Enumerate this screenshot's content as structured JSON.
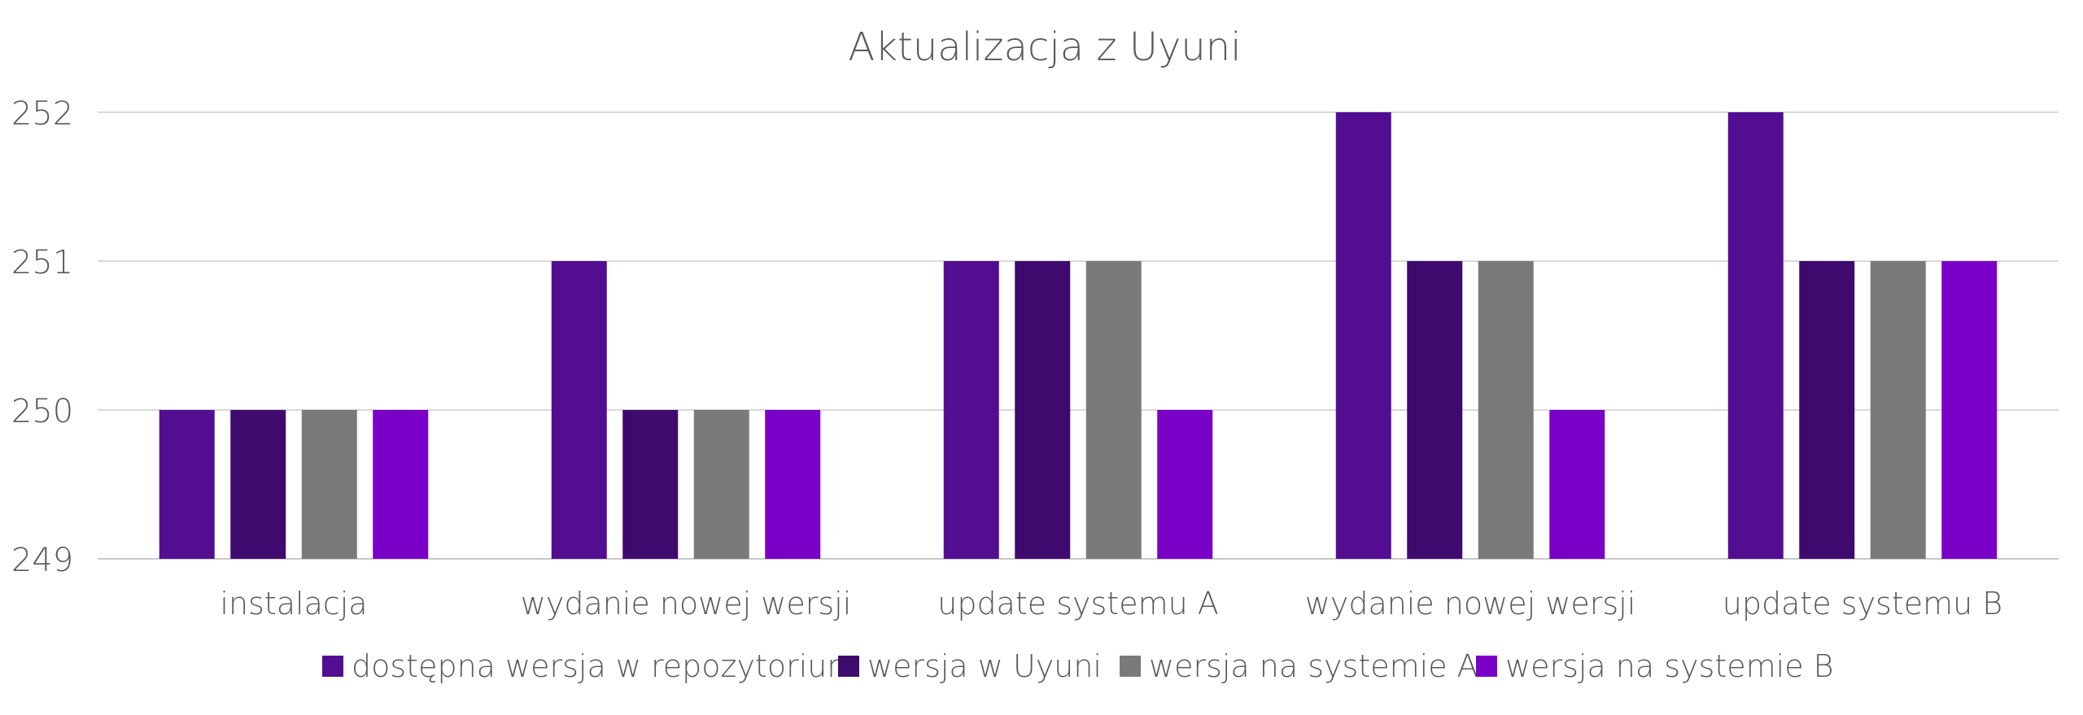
{
  "chart_data": {
    "type": "bar",
    "title": "Aktualizacja z Uyuni",
    "xlabel": "",
    "ylabel": "",
    "ylim": [
      249,
      252
    ],
    "yticks": [
      "249",
      "250",
      "251",
      "252"
    ],
    "grid": true,
    "legend_position": "bottom",
    "categories": [
      "instalacja",
      "wydanie nowej wersji",
      "update systemu A",
      "wydanie nowej wersji",
      "update systemu B"
    ],
    "series": [
      {
        "name": "dostępna wersja w repozytorium",
        "color": "#530D91",
        "values": [
          250,
          251,
          251,
          252,
          252
        ]
      },
      {
        "name": "wersja w Uyuni",
        "color": "#3F0A6E",
        "values": [
          250,
          250,
          251,
          251,
          251
        ]
      },
      {
        "name": "wersja na systemie A",
        "color": "#7A7A7A",
        "values": [
          250,
          250,
          251,
          251,
          251
        ]
      },
      {
        "name": "wersja na systemie B",
        "color": "#7A00C8",
        "values": [
          250,
          250,
          250,
          250,
          251
        ]
      }
    ]
  }
}
